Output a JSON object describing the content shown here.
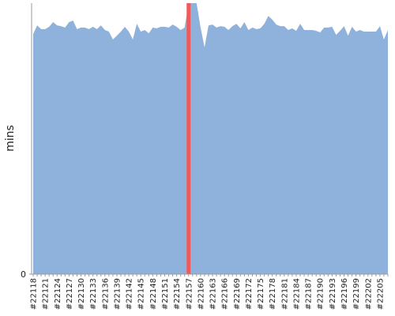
{
  "chart_data": {
    "type": "area",
    "y_label": "mins",
    "color": "#8eb2dc",
    "highlight": "#22157",
    "highlight_color": "#f05a5a",
    "ylim": [
      0,
      100
    ],
    "yticks": [
      0
    ],
    "categories": [
      "#22118",
      null,
      null,
      "#22121",
      null,
      null,
      "#22124",
      null,
      null,
      "#22127",
      null,
      null,
      "#22130",
      null,
      null,
      "#22133",
      null,
      null,
      "#22136",
      null,
      null,
      "#22139",
      null,
      null,
      "#22142",
      null,
      null,
      "#22145",
      null,
      null,
      "#22148",
      null,
      null,
      "#22151",
      null,
      null,
      "#22154",
      null,
      null,
      "#22157",
      null,
      null,
      "#22160",
      null,
      null,
      "#22163",
      null,
      null,
      "#22166",
      null,
      null,
      "#22169",
      null,
      null,
      "#22172",
      null,
      null,
      "#22175",
      null,
      null,
      "#22178",
      null,
      null,
      "#22181",
      null,
      null,
      "#22184",
      null,
      null,
      "#22187",
      null,
      null,
      "#22190",
      null,
      null,
      "#22193",
      null,
      null,
      "#22196",
      null,
      null,
      "#22199",
      null,
      null,
      "#22202",
      null,
      null,
      "#22205",
      null,
      null
    ],
    "values": [
      88.6,
      91.8,
      90.4,
      90.4,
      91.3,
      93.0,
      91.8,
      91.5,
      91.0,
      93.0,
      93.6,
      90.4,
      91.0,
      91.0,
      90.4,
      91.3,
      90.4,
      91.8,
      90.1,
      89.5,
      86.6,
      88.0,
      89.5,
      91.3,
      89.5,
      86.6,
      92.4,
      89.5,
      90.1,
      88.9,
      91.0,
      90.7,
      91.3,
      91.3,
      91.0,
      92.1,
      91.3,
      90.1,
      91.0,
      100,
      100,
      100,
      91.0,
      83.7,
      91.8,
      92.1,
      91.0,
      91.5,
      91.3,
      90.1,
      91.5,
      92.4,
      90.7,
      93.0,
      90.1,
      91.0,
      90.4,
      90.7,
      92.4,
      95.3,
      93.9,
      92.1,
      91.5,
      91.5,
      90.1,
      90.7,
      89.8,
      92.4,
      90.1,
      90.1,
      90.1,
      89.8,
      89.2,
      91.0,
      91.0,
      91.3,
      88.3,
      89.8,
      91.5,
      88.0,
      91.3,
      89.5,
      90.1,
      89.5,
      89.5,
      89.5,
      89.5,
      91.5,
      86.6,
      90.1
    ]
  }
}
